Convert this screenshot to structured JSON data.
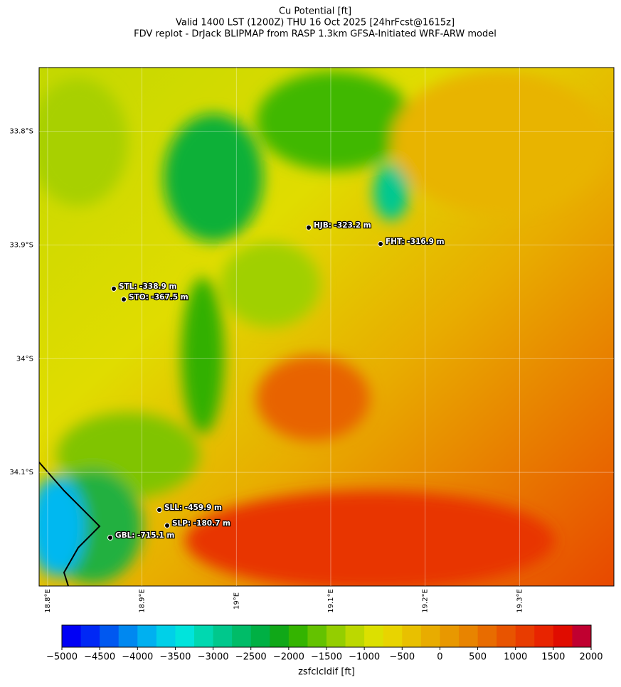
{
  "chart_data": {
    "type": "map",
    "title": "Cu Potential [ft]",
    "subtitle": [
      "Valid 1400 LST (1200Z) THU 16 Oct 2025 [24hrFcst@1615z]",
      "FDV replot - DrJack BLIPMAP from RASP 1.3km GFSA-Initiated WRF-ARW model"
    ],
    "xlim": [
      18.791,
      19.4
    ],
    "ylim": [
      33.744,
      34.2
    ],
    "xticks": [
      {
        "value": 18.8,
        "label": "18.8°E"
      },
      {
        "value": 18.9,
        "label": "18.9°E"
      },
      {
        "value": 19.0,
        "label": "19°E"
      },
      {
        "value": 19.1,
        "label": "19.1°E"
      },
      {
        "value": 19.2,
        "label": "19.2°E"
      },
      {
        "value": 19.3,
        "label": "19.3°E"
      }
    ],
    "yticks": [
      {
        "value": 33.8,
        "label": "33.8°S"
      },
      {
        "value": 33.9,
        "label": "33.9°S"
      },
      {
        "value": 34.0,
        "label": "34°S"
      },
      {
        "value": 34.1,
        "label": "34.1°S"
      }
    ],
    "grid": true,
    "stations": [
      {
        "label": "HJB: -323.2 m"
      },
      {
        "label": "FHT: -316.9 m"
      },
      {
        "label": "STL: -338.9 m"
      },
      {
        "label": "STO: -367.5 m"
      },
      {
        "label": "SLL: -459.9 m"
      },
      {
        "label": "SLP: -180.7 m"
      },
      {
        "label": "GBL: -715.1 m"
      }
    ],
    "colorbar": {
      "label": "zsfclcldif [ft]",
      "clim": [
        -5000,
        2000
      ],
      "ticks": [
        {
          "value": -5000,
          "label": "−5000"
        },
        {
          "value": -4500,
          "label": "−4500"
        },
        {
          "value": -4000,
          "label": "−4000"
        },
        {
          "value": -3500,
          "label": "−3500"
        },
        {
          "value": -3000,
          "label": "−3000"
        },
        {
          "value": -2500,
          "label": "−2500"
        },
        {
          "value": -2000,
          "label": "−2000"
        },
        {
          "value": -1500,
          "label": "−1500"
        },
        {
          "value": -1000,
          "label": "−1000"
        },
        {
          "value": -500,
          "label": "−500"
        },
        0,
        500,
        1000,
        1500,
        2000
      ],
      "colors": [
        "#0000f5",
        "#0028f5",
        "#0058f0",
        "#0088f0",
        "#00b0f0",
        "#00d0e8",
        "#00e4dc",
        "#00d8b0",
        "#00c88c",
        "#00bc68",
        "#00b044",
        "#10a818",
        "#34b400",
        "#64c200",
        "#94ce00",
        "#bcd800",
        "#dce000",
        "#e8d400",
        "#e8c000",
        "#e8ac00",
        "#e89800",
        "#e88400",
        "#e86c00",
        "#e85400",
        "#e83c00",
        "#e82400",
        "#e00c00",
        "#c00030"
      ]
    }
  }
}
